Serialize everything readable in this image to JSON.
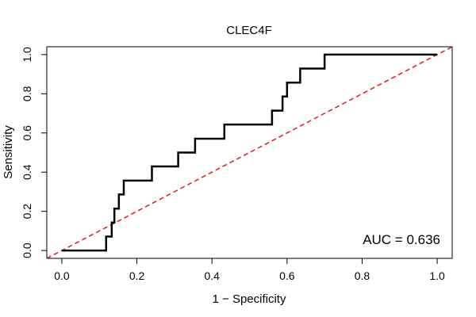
{
  "chart_data": {
    "type": "line",
    "title": "CLEC4F",
    "xlabel": "1 − Specificity",
    "ylabel": "Sensitivity",
    "xlim": [
      -0.04,
      1.04
    ],
    "ylim": [
      -0.04,
      1.04
    ],
    "xticks": [
      0.0,
      0.2,
      0.4,
      0.6,
      0.8,
      1.0
    ],
    "yticks": [
      0.0,
      0.2,
      0.4,
      0.6,
      0.8,
      1.0
    ],
    "xtick_labels": [
      "0.0",
      "0.2",
      "0.4",
      "0.6",
      "0.8",
      "1.0"
    ],
    "ytick_labels": [
      "0.0",
      "0.2",
      "0.4",
      "0.6",
      "0.8",
      "1.0"
    ],
    "grid": false,
    "legend": "none",
    "series": [
      {
        "style": "solid",
        "color": "#000000",
        "x": [
          0.0,
          0.118,
          0.118,
          0.133,
          0.133,
          0.14,
          0.14,
          0.152,
          0.152,
          0.165,
          0.165,
          0.24,
          0.24,
          0.31,
          0.31,
          0.355,
          0.355,
          0.433,
          0.433,
          0.56,
          0.56,
          0.588,
          0.588,
          0.6,
          0.6,
          0.635,
          0.635,
          0.7,
          0.7,
          1.0
        ],
        "y": [
          0.0,
          0.0,
          0.071,
          0.071,
          0.143,
          0.143,
          0.214,
          0.214,
          0.286,
          0.286,
          0.357,
          0.357,
          0.429,
          0.429,
          0.5,
          0.5,
          0.571,
          0.571,
          0.643,
          0.643,
          0.714,
          0.714,
          0.786,
          0.786,
          0.857,
          0.857,
          0.929,
          0.929,
          1.0,
          1.0
        ]
      },
      {
        "style": "dashed",
        "color": "#e31a1c",
        "x": [
          -0.04,
          1.04
        ],
        "y": [
          -0.04,
          1.04
        ]
      }
    ],
    "annotation": "AUC = 0.636"
  }
}
